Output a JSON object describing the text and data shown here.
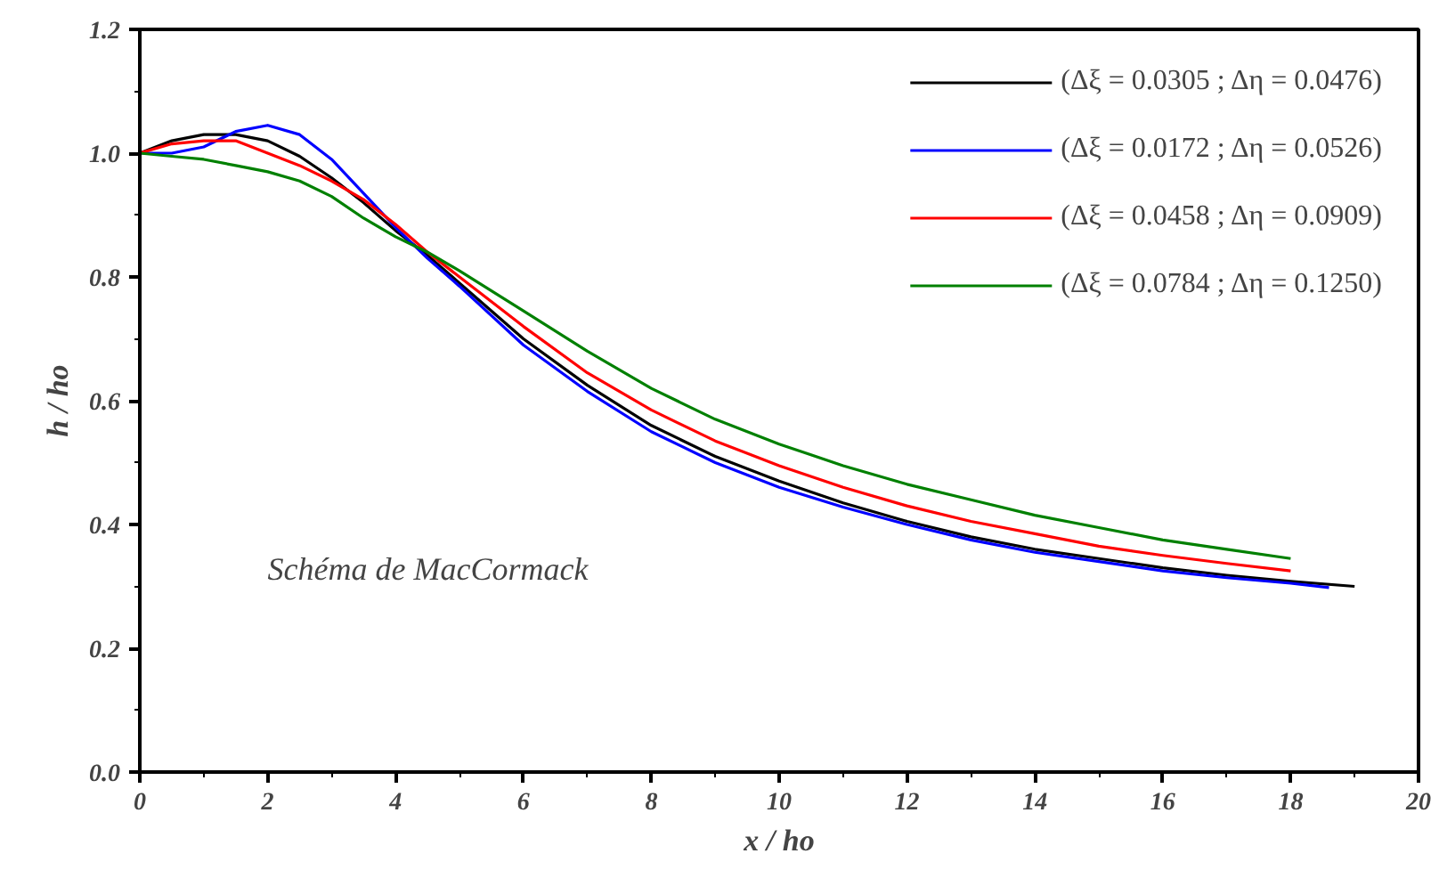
{
  "chart_data": {
    "type": "line",
    "xlabel": "x / ho",
    "ylabel": "h / ho",
    "xlim": [
      0,
      20
    ],
    "ylim": [
      0,
      1.2
    ],
    "xticks": [
      0,
      2,
      4,
      6,
      8,
      10,
      12,
      14,
      16,
      18,
      20
    ],
    "yticks": [
      {
        "value": 0,
        "label": "0.0"
      },
      {
        "value": 0.2,
        "label": "0.2"
      },
      {
        "value": 0.4,
        "label": "0.4"
      },
      {
        "value": 0.6,
        "label": "0.6"
      },
      {
        "value": 0.8,
        "label": "0.8"
      },
      {
        "value": 1.0,
        "label": "1.0"
      },
      {
        "value": 1.2,
        "label": "1.2"
      }
    ],
    "grid": false,
    "legend": "top right",
    "marker": "none",
    "line_style": "solid",
    "annotations": [
      "Schéma de MacCormack"
    ],
    "series": [
      {
        "name": "(Δξ = 0.0305 ; Δη = 0.0476)",
        "color": "#000000",
        "x": [
          0,
          0.5,
          1,
          1.5,
          2,
          2.5,
          3,
          3.5,
          4,
          4.5,
          5,
          6,
          7,
          8,
          9,
          10,
          11,
          12,
          13,
          14,
          15,
          16,
          17,
          18,
          19
        ],
        "values": [
          1.0,
          1.02,
          1.03,
          1.03,
          1.02,
          0.995,
          0.96,
          0.92,
          0.875,
          0.835,
          0.79,
          0.7,
          0.625,
          0.56,
          0.51,
          0.47,
          0.435,
          0.405,
          0.38,
          0.36,
          0.345,
          0.33,
          0.318,
          0.308,
          0.3
        ]
      },
      {
        "name": "(Δξ = 0.0172 ; Δη = 0.0526)",
        "color": "#0000ff",
        "x": [
          0,
          0.5,
          1,
          1.5,
          2,
          2.5,
          3,
          3.5,
          4,
          4.5,
          5,
          6,
          7,
          8,
          9,
          10,
          11,
          12,
          13,
          14,
          15,
          16,
          17,
          18,
          18.6
        ],
        "values": [
          1.0,
          1.0,
          1.01,
          1.035,
          1.045,
          1.03,
          0.99,
          0.935,
          0.88,
          0.83,
          0.785,
          0.69,
          0.615,
          0.55,
          0.5,
          0.46,
          0.428,
          0.4,
          0.375,
          0.355,
          0.34,
          0.325,
          0.314,
          0.305,
          0.298
        ]
      },
      {
        "name": "(Δξ = 0.0458 ; Δη = 0.0909)",
        "color": "#ff0000",
        "x": [
          0,
          0.5,
          1,
          1.5,
          2,
          2.5,
          3,
          3.5,
          4,
          4.5,
          5,
          6,
          7,
          8,
          9,
          10,
          11,
          12,
          13,
          14,
          15,
          16,
          17,
          18
        ],
        "values": [
          1.0,
          1.015,
          1.02,
          1.02,
          1.0,
          0.98,
          0.955,
          0.925,
          0.885,
          0.84,
          0.8,
          0.72,
          0.645,
          0.585,
          0.535,
          0.495,
          0.46,
          0.43,
          0.405,
          0.385,
          0.365,
          0.35,
          0.337,
          0.325
        ]
      },
      {
        "name": "(Δξ = 0.0784 ; Δη = 0.1250)",
        "color": "#008000",
        "x": [
          0,
          0.5,
          1,
          1.5,
          2,
          2.5,
          3,
          3.5,
          4,
          4.5,
          5,
          6,
          7,
          8,
          9,
          10,
          11,
          12,
          13,
          14,
          15,
          16,
          17,
          18
        ],
        "values": [
          1.0,
          0.995,
          0.99,
          0.98,
          0.97,
          0.955,
          0.93,
          0.895,
          0.865,
          0.84,
          0.81,
          0.745,
          0.68,
          0.62,
          0.57,
          0.53,
          0.495,
          0.465,
          0.44,
          0.415,
          0.395,
          0.375,
          0.36,
          0.345
        ]
      }
    ]
  }
}
